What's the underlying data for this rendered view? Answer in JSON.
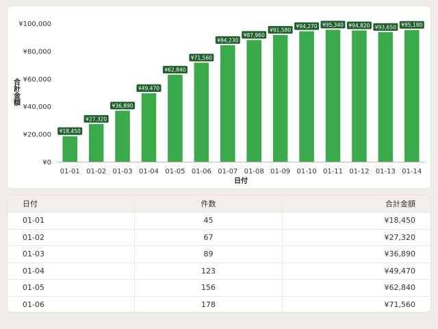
{
  "chart_data": {
    "type": "bar",
    "title": "",
    "xlabel": "日付",
    "ylabel": "合計金額",
    "categories": [
      "01-01",
      "01-02",
      "01-03",
      "01-04",
      "01-05",
      "01-06",
      "01-07",
      "01-08",
      "01-09",
      "01-10",
      "01-11",
      "01-12",
      "01-13",
      "01-14"
    ],
    "values": [
      18450,
      27320,
      36890,
      49470,
      62840,
      71560,
      84230,
      87960,
      91580,
      94270,
      95340,
      94820,
      93650,
      95180
    ],
    "data_labels": [
      "¥18,450",
      "¥27,320",
      "¥36,890",
      "¥49,470",
      "¥62,840",
      "¥71,560",
      "¥84,230",
      "¥87,960",
      "¥91,580",
      "¥94,270",
      "¥95,340",
      "¥94,820",
      "¥93,650",
      "¥95,180"
    ],
    "yticks": [
      0,
      20000,
      40000,
      60000,
      80000,
      100000
    ],
    "ytick_labels": [
      "¥0",
      "¥20,000",
      "¥40,000",
      "¥60,000",
      "¥80,000",
      "¥100,000"
    ],
    "ylim": [
      0,
      100000
    ],
    "grid": false,
    "legend": "none",
    "colors": {
      "bar": "#3aaa4a",
      "label_bg": "#1f5f2c",
      "label_text": "#ffffff"
    }
  },
  "table": {
    "headers": {
      "date": "日付",
      "count": "件数",
      "amount": "合計金額"
    },
    "rows": [
      {
        "date": "01-01",
        "count": "45",
        "amount": "¥18,450"
      },
      {
        "date": "01-02",
        "count": "67",
        "amount": "¥27,320"
      },
      {
        "date": "01-03",
        "count": "89",
        "amount": "¥36,890"
      },
      {
        "date": "01-04",
        "count": "123",
        "amount": "¥49,470"
      },
      {
        "date": "01-05",
        "count": "156",
        "amount": "¥62,840"
      },
      {
        "date": "01-06",
        "count": "178",
        "amount": "¥71,560"
      }
    ]
  }
}
